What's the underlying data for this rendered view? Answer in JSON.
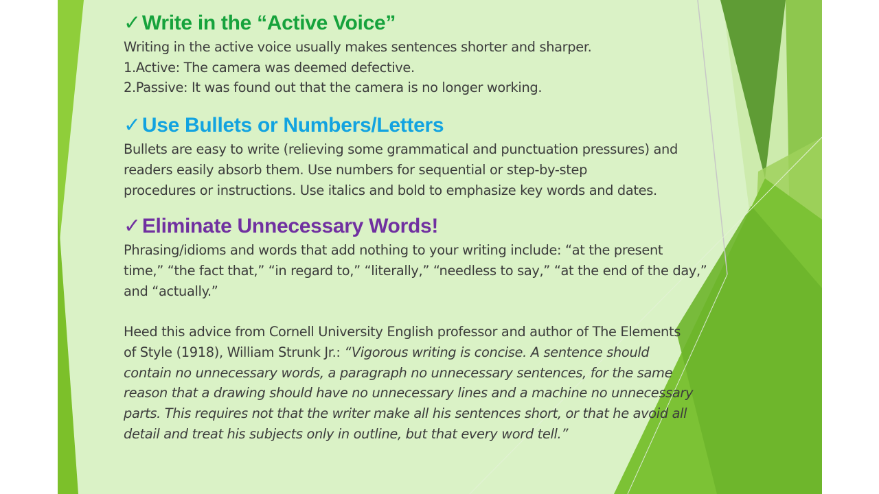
{
  "colors": {
    "slide_background": "#daf2c6",
    "heading_green": "#16a23c",
    "heading_blue": "#12a3e0",
    "heading_purple": "#7030a0",
    "body_text": "#3c3c3c",
    "accent_green_dark": "#5a9a2e",
    "accent_green_light": "#9bd04a"
  },
  "check_mark": "✓",
  "sections": [
    {
      "heading": "Write in the “Active Voice”",
      "lines": [
        "Writing in the active voice usually makes sentences shorter and sharper.",
        "1.Active: The camera was deemed defective.",
        "2.Passive: It was found out that the camera is no longer working."
      ]
    },
    {
      "heading": "Use Bullets or Numbers/Letters",
      "lines": [
        "Bullets are easy to write (relieving some grammatical and punctuation pressures) and",
        "readers easily absorb them. Use numbers for sequential or step-by-step",
        "procedures or instructions. Use italics and bold to emphasize key words and dates."
      ]
    },
    {
      "heading": "Eliminate Unnecessary Words!",
      "lines": [
        "Phrasing/idioms and words that add nothing to your writing include: “at the present",
        "time,” “the fact that,” “in regard to,” “literally,” “needless to say,” “at the end of the day,”",
        "and “actually.”"
      ]
    }
  ],
  "closing": {
    "line1": "Heed this advice from Cornell University English professor and author of The Elements",
    "line2_plain": "of Style (1918), William Strunk Jr.: ",
    "line2_quote": "“Vigorous writing is concise. A sentence should",
    "quote_lines": [
      "contain no unnecessary words, a paragraph no unnecessary sentences, for the same",
      "reason that a drawing should have no unnecessary lines and a machine no unnecessary",
      "parts. This requires not that the writer make all his sentences short, or that he avoid all",
      "detail and treat his subjects only in outline, but that every word tell.”"
    ]
  }
}
